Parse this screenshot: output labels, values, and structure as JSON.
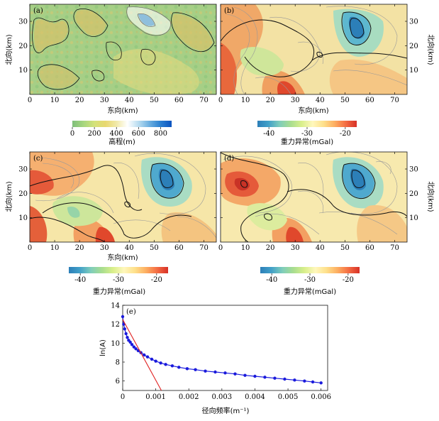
{
  "chart_data": [
    {
      "type": "heatmap",
      "panel": "(a)",
      "xlabel": "东向(km)",
      "ylabel": "北向(km)",
      "xlim": [
        0,
        75
      ],
      "ylim": [
        0,
        37
      ],
      "xticks": [
        "0",
        "10",
        "20",
        "30",
        "40",
        "50",
        "60",
        "70"
      ],
      "yticks": [
        "10",
        "20",
        "30"
      ],
      "colorbar": {
        "title": "高程(m)",
        "ticks": [
          "0",
          "200",
          "400",
          "600",
          "800"
        ],
        "range": [
          0,
          900
        ],
        "colors": [
          "#7fbf7b",
          "#a6d67e",
          "#d4e27a",
          "#e8d870",
          "#f1e9a8",
          "#ffffff",
          "#b8dcf0",
          "#6aaee0",
          "#2a7fd0",
          "#0b53c0"
        ]
      }
    },
    {
      "type": "heatmap",
      "panel": "(b)",
      "xlabel": "东向(km)",
      "ylabel": "北向(km)",
      "xlim": [
        0,
        75
      ],
      "ylim": [
        0,
        37
      ],
      "xticks": [
        "0",
        "10",
        "20",
        "30",
        "40",
        "50",
        "60",
        "70"
      ],
      "yticks": [
        "10",
        "20",
        "30"
      ],
      "colorbar": {
        "title": "重力异常(mGal)",
        "ticks": [
          "-40",
          "-30",
          "-20"
        ],
        "range": [
          -43,
          -17
        ],
        "colors": [
          "#2c7fb8",
          "#41a0c8",
          "#7fcdbb",
          "#a8dd8f",
          "#d9ef8b",
          "#fff7bc",
          "#fee08b",
          "#fdae61",
          "#f46d43",
          "#d73027"
        ]
      }
    },
    {
      "type": "heatmap",
      "panel": "(c)",
      "xlabel": "东向(km)",
      "ylabel": "北向(km)",
      "xlim": [
        0,
        75
      ],
      "ylim": [
        0,
        37
      ],
      "xticks": [
        "0",
        "10",
        "20",
        "30",
        "40",
        "50",
        "60",
        "70"
      ],
      "yticks": [
        "10",
        "20",
        "30"
      ],
      "colorbar": {
        "title": "重力异常(mGal)",
        "ticks": [
          "-40",
          "-30",
          "-20"
        ],
        "range": [
          -43,
          -17
        ],
        "colors": [
          "#2c7fb8",
          "#41a0c8",
          "#7fcdbb",
          "#a8dd8f",
          "#d9ef8b",
          "#fff7bc",
          "#fee08b",
          "#fdae61",
          "#f46d43",
          "#d73027"
        ]
      }
    },
    {
      "type": "heatmap",
      "panel": "(d)",
      "xlabel": "东向(km)",
      "ylabel": "北向(km)",
      "xlim": [
        0,
        75
      ],
      "ylim": [
        0,
        37
      ],
      "xticks": [
        "0",
        "10",
        "20",
        "30",
        "40",
        "50",
        "60",
        "70"
      ],
      "yticks": [
        "10",
        "20",
        "30"
      ],
      "colorbar": {
        "title": "重力异常(mGal)",
        "ticks": [
          "-40",
          "-30",
          "-20"
        ],
        "range": [
          -43,
          -17
        ],
        "colors": [
          "#2c7fb8",
          "#41a0c8",
          "#7fcdbb",
          "#a8dd8f",
          "#d9ef8b",
          "#fff7bc",
          "#fee08b",
          "#fdae61",
          "#f46d43",
          "#d73027"
        ]
      }
    },
    {
      "type": "scatter",
      "panel": "(e)",
      "xlabel": "径向频率(m⁻¹)",
      "ylabel": "ln(A)",
      "xlim": [
        0,
        0.0062
      ],
      "ylim": [
        5,
        14
      ],
      "xticks": [
        "0",
        "0.001",
        "0.002",
        "0.003",
        "0.004",
        "0.005",
        "0.006"
      ],
      "yticks": [
        "6",
        "8",
        "10",
        "12",
        "14"
      ],
      "series": [
        {
          "marker_color": "#1a1adc",
          "x": [
            0.0,
            3e-05,
            6e-05,
            0.0001,
            0.00014,
            0.00018,
            0.00023,
            0.00028,
            0.00034,
            0.0004,
            0.00047,
            0.00055,
            0.00065,
            0.00075,
            0.00088,
            0.001,
            0.00115,
            0.0013,
            0.0015,
            0.0017,
            0.00195,
            0.0022,
            0.0025,
            0.0028,
            0.0031,
            0.0034,
            0.0037,
            0.004,
            0.0043,
            0.0046,
            0.0049,
            0.0052,
            0.0055,
            0.00575,
            0.006
          ],
          "y": [
            12.8,
            12.0,
            11.5,
            11.0,
            10.6,
            10.3,
            10.1,
            9.85,
            9.6,
            9.4,
            9.2,
            9.0,
            8.75,
            8.55,
            8.3,
            8.1,
            7.9,
            7.75,
            7.6,
            7.45,
            7.3,
            7.2,
            7.05,
            6.95,
            6.85,
            6.75,
            6.6,
            6.5,
            6.4,
            6.3,
            6.2,
            6.1,
            6.0,
            5.9,
            5.8
          ]
        },
        {
          "type": "line",
          "line_color": "#e02020",
          "x": [
            0.0,
            0.00117
          ],
          "y": [
            12.5,
            5.0
          ]
        }
      ]
    }
  ]
}
